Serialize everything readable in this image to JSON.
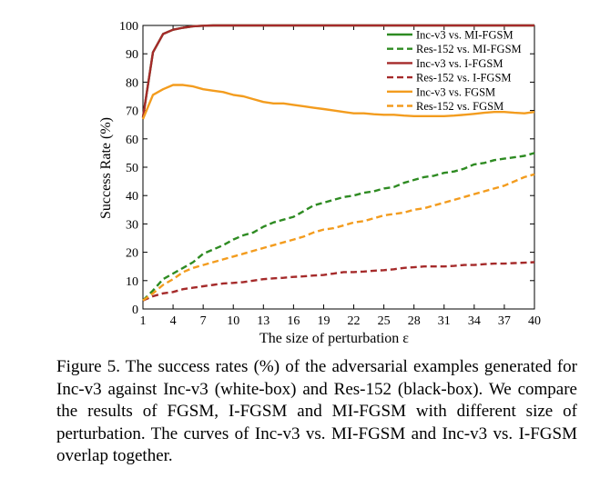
{
  "chart_data": {
    "type": "line",
    "xlabel": "The size of perturbation ε",
    "ylabel": "Success Rate (%)",
    "xlim": [
      1,
      40
    ],
    "ylim": [
      0,
      100
    ],
    "xticks": [
      1,
      4,
      7,
      10,
      13,
      16,
      19,
      22,
      25,
      28,
      31,
      34,
      37,
      40
    ],
    "yticks": [
      0,
      10,
      20,
      30,
      40,
      50,
      60,
      70,
      80,
      90,
      100
    ],
    "grid": false,
    "legend_position": "top-right",
    "x": [
      1,
      2,
      3,
      4,
      5,
      6,
      7,
      8,
      9,
      10,
      11,
      12,
      13,
      14,
      15,
      16,
      17,
      18,
      19,
      20,
      21,
      22,
      23,
      24,
      25,
      26,
      27,
      28,
      29,
      30,
      31,
      32,
      33,
      34,
      35,
      36,
      37,
      38,
      39,
      40
    ],
    "series": [
      {
        "name": "Inc-v3 vs. MI-FGSM",
        "color": "#2e8b22",
        "dash": "solid",
        "values": [
          67.5,
          90.5,
          97,
          98.5,
          99.2,
          99.7,
          99.9,
          100,
          100,
          100,
          100,
          100,
          100,
          100,
          100,
          100,
          100,
          100,
          100,
          100,
          100,
          100,
          100,
          100,
          100,
          100,
          100,
          100,
          100,
          100,
          100,
          100,
          100,
          100,
          100,
          100,
          100,
          100,
          100,
          100
        ]
      },
      {
        "name": "Res-152 vs. MI-FGSM",
        "color": "#2e8b22",
        "dash": "dashed",
        "values": [
          3,
          6.5,
          10.5,
          12.5,
          14.5,
          16.5,
          19.5,
          21,
          22.5,
          24.5,
          26,
          27,
          29,
          30.5,
          31.5,
          32.5,
          34.5,
          36.5,
          37.5,
          38.5,
          39.5,
          40,
          41,
          41.5,
          42.5,
          43,
          44.5,
          45.5,
          46.5,
          47,
          48,
          48.5,
          49.5,
          51,
          51.5,
          52.5,
          53,
          53.5,
          54,
          55
        ]
      },
      {
        "name": "Inc-v3 vs. I-FGSM",
        "color": "#a52a2a",
        "dash": "solid",
        "values": [
          67.5,
          90.5,
          97,
          98.5,
          99.2,
          99.7,
          99.9,
          100,
          100,
          100,
          100,
          100,
          100,
          100,
          100,
          100,
          100,
          100,
          100,
          100,
          100,
          100,
          100,
          100,
          100,
          100,
          100,
          100,
          100,
          100,
          100,
          100,
          100,
          100,
          100,
          100,
          100,
          100,
          100,
          100
        ]
      },
      {
        "name": "Res-152 vs. I-FGSM",
        "color": "#a52a2a",
        "dash": "dashed",
        "values": [
          3,
          4.5,
          5.5,
          6,
          7,
          7.5,
          8,
          8.5,
          9,
          9.2,
          9.5,
          10,
          10.5,
          10.8,
          11,
          11.3,
          11.5,
          11.8,
          12,
          12.5,
          13,
          13,
          13.2,
          13.5,
          13.7,
          14,
          14.5,
          14.7,
          15,
          15,
          15,
          15.2,
          15.5,
          15.5,
          15.8,
          16,
          16,
          16.2,
          16.3,
          16.5
        ]
      },
      {
        "name": "Inc-v3 vs. FGSM",
        "color": "#f39c1e",
        "dash": "solid",
        "values": [
          67,
          75.5,
          77.5,
          79,
          79,
          78.5,
          77.5,
          77,
          76.5,
          75.5,
          75,
          74,
          73,
          72.5,
          72.5,
          72,
          71.5,
          71,
          70.5,
          70,
          69.5,
          69,
          69,
          68.7,
          68.5,
          68.5,
          68.2,
          68,
          68,
          68,
          68,
          68.2,
          68.5,
          68.8,
          69.2,
          69.5,
          69.5,
          69.2,
          69,
          69.5
        ]
      },
      {
        "name": "Res-152 vs. FGSM",
        "color": "#f39c1e",
        "dash": "dashed",
        "values": [
          3,
          5.5,
          8.5,
          10.5,
          13,
          14.5,
          15.5,
          16.5,
          17.5,
          18.5,
          19.5,
          20.5,
          21.5,
          22.5,
          23.5,
          24.5,
          25.5,
          27,
          28,
          28.5,
          29.5,
          30.5,
          31,
          32,
          33,
          33.5,
          34,
          35,
          35.5,
          36.5,
          37.5,
          38.5,
          39.5,
          40.5,
          41.5,
          42.5,
          43.5,
          45,
          46.5,
          47.5
        ]
      }
    ]
  },
  "caption": "Figure 5. The success rates (%) of the adversarial examples generated for Inc-v3 against Inc-v3 (white-box) and Res-152 (black-box). We compare the results of FGSM, I-FGSM and MI-FGSM with different size of perturbation. The curves of Inc-v3 vs. MI-FGSM and Inc-v3 vs. I-FGSM overlap together."
}
